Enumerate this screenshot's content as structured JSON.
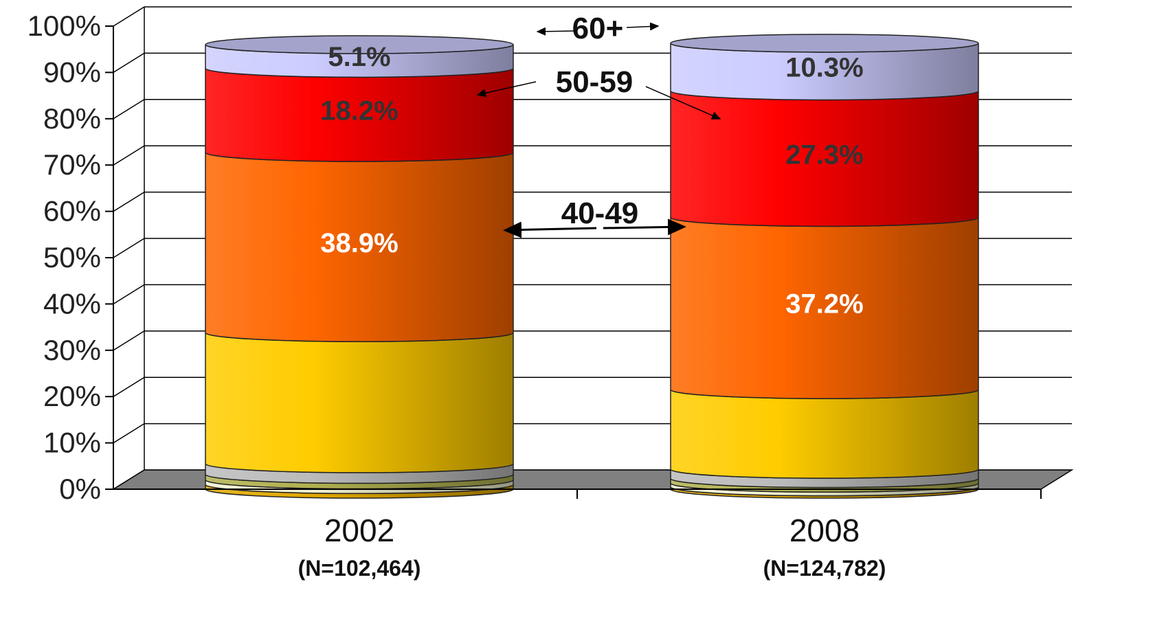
{
  "chart_data": {
    "type": "bar",
    "stacked": true,
    "style": "3d-cylinder",
    "title": "",
    "xlabel": "",
    "ylabel": "",
    "ylim": [
      0,
      100
    ],
    "yticks": [
      "0%",
      "10%",
      "20%",
      "30%",
      "40%",
      "50%",
      "60%",
      "70%",
      "80%",
      "90%",
      "100%"
    ],
    "grid": true,
    "legend": "none",
    "categories": [
      "2002",
      "2008"
    ],
    "category_notes": [
      "(N=102,464)",
      "(N=124,782)"
    ],
    "series": [
      {
        "values": [
          1.0,
          0.5
        ],
        "color": "#e0a800"
      },
      {
        "values": [
          1.0,
          0.8
        ],
        "color": "#f2f2d0"
      },
      {
        "values": [
          1.2,
          1.0
        ],
        "color": "#b0b050"
      },
      {
        "values": [
          2.3,
          2.0
        ],
        "color": "#bbbbbb"
      },
      {
        "values": [
          28.3,
          17.2
        ],
        "color": "#ffcc00"
      },
      {
        "values": [
          38.9,
          37.2
        ],
        "color": "#ff6600",
        "labels": [
          "38.9%",
          "37.2%"
        ],
        "label_color": "#ffffff"
      },
      {
        "values": [
          18.2,
          27.3
        ],
        "color": "#ff0000",
        "labels": [
          "18.2%",
          "27.3%"
        ],
        "label_color": "#333333"
      },
      {
        "values": [
          5.1,
          10.3
        ],
        "color": "#ccccff",
        "labels": [
          "5.1%",
          "10.3%"
        ],
        "label_color": "#333333"
      }
    ],
    "annotations": [
      {
        "text": "60+"
      },
      {
        "text": "50-59"
      },
      {
        "text": "40-49"
      }
    ]
  }
}
